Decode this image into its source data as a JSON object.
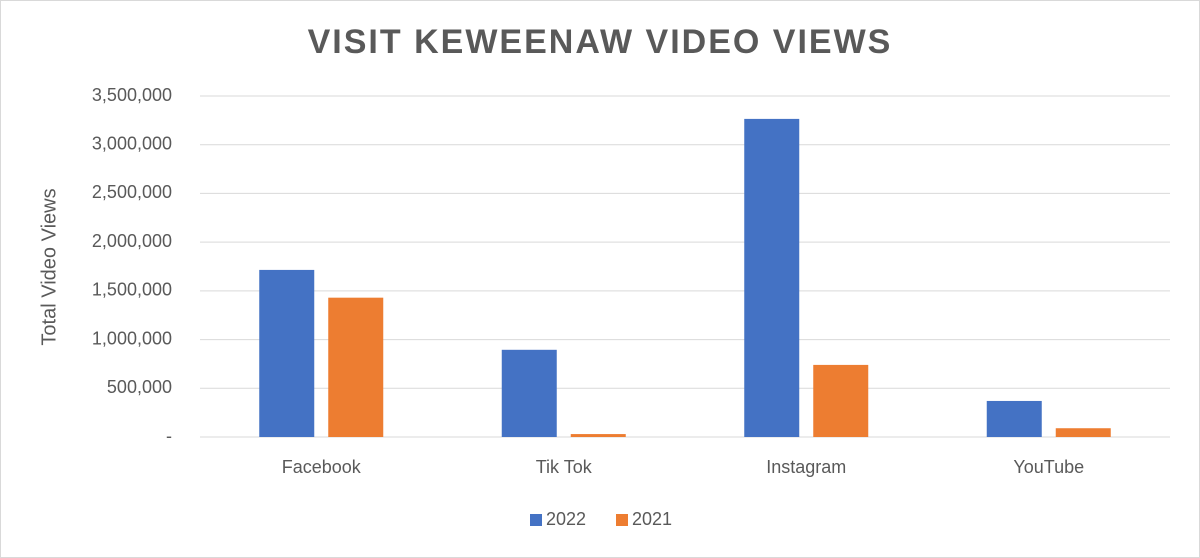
{
  "chart_data": {
    "type": "bar",
    "title": "VISIT KEWEENAW VIDEO VIEWS",
    "y_label": "Total Video Views",
    "categories": [
      "Facebook",
      "Tik Tok",
      "Instagram",
      "YouTube"
    ],
    "series": [
      {
        "name": "2022",
        "color": "#4472c4",
        "values": [
          1715000,
          895000,
          3265000,
          370000
        ]
      },
      {
        "name": "2021",
        "color": "#ed7d31",
        "values": [
          1430000,
          30000,
          740000,
          90000
        ]
      }
    ],
    "ylim": [
      0,
      3500000
    ],
    "yticks": [
      {
        "value": 0,
        "label": "-"
      },
      {
        "value": 500000,
        "label": "500,000"
      },
      {
        "value": 1000000,
        "label": "1,000,000"
      },
      {
        "value": 1500000,
        "label": "1,500,000"
      },
      {
        "value": 2000000,
        "label": "2,000,000"
      },
      {
        "value": 2500000,
        "label": "2,500,000"
      },
      {
        "value": 3000000,
        "label": "3,000,000"
      },
      {
        "value": 3500000,
        "label": "3,500,000"
      }
    ],
    "grid": true,
    "legend": "bottom"
  }
}
